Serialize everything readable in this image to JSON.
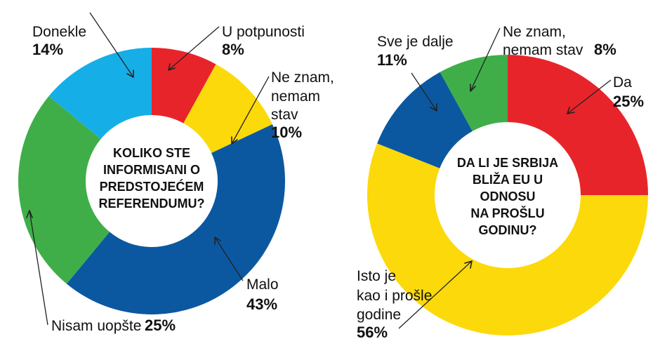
{
  "chart_data": [
    {
      "type": "pie",
      "title": "KOLIKO STE INFORMISANI O PREDSTOJEĆEM REFERENDUMU?",
      "title_lines": [
        "KOLIKO STE",
        "INFORMISANI O",
        "PREDSTOJEĆEM",
        "REFERENDUMU?"
      ],
      "slices": [
        {
          "label_lines": [
            "U potpunosti"
          ],
          "value": 8,
          "value_label": "8%",
          "color": "#e8242b"
        },
        {
          "label_lines": [
            "Ne znam,",
            "nemam",
            "stav"
          ],
          "value": 10,
          "value_label": "10%",
          "color": "#fcd90a"
        },
        {
          "label_lines": [
            "Malo"
          ],
          "value": 43,
          "value_label": "43%",
          "color": "#0b58a1"
        },
        {
          "label_lines": [
            "Nisam uopšte"
          ],
          "value": 25,
          "value_label": "25%",
          "color": "#3fae49"
        },
        {
          "label_lines": [
            "Donekle"
          ],
          "value": 14,
          "value_label": "14%",
          "color": "#16aee6"
        }
      ]
    },
    {
      "type": "pie",
      "title": "DA LI JE SRBIJA BLIŽA EU U ODNOSU NA PROŠLU GODINU?",
      "title_lines": [
        "DA LI JE SRBIJA",
        "BLIŽA EU U",
        "ODNOSU",
        "NA PROŠLU",
        "GODINU?"
      ],
      "slices": [
        {
          "label_lines": [
            "Da"
          ],
          "value": 25,
          "value_label": "25%",
          "color": "#e8242b"
        },
        {
          "label_lines": [
            "Isto je",
            "kao i prošle",
            "godine"
          ],
          "value": 56,
          "value_label": "56%",
          "color": "#fcd90a"
        },
        {
          "label_lines": [
            "Sve je dalje"
          ],
          "value": 11,
          "value_label": "11%",
          "color": "#0b58a1"
        },
        {
          "label_lines": [
            "Ne znam,",
            "nemam stav"
          ],
          "value": 8,
          "value_label": "8%",
          "color": "#3fae49"
        }
      ]
    }
  ]
}
